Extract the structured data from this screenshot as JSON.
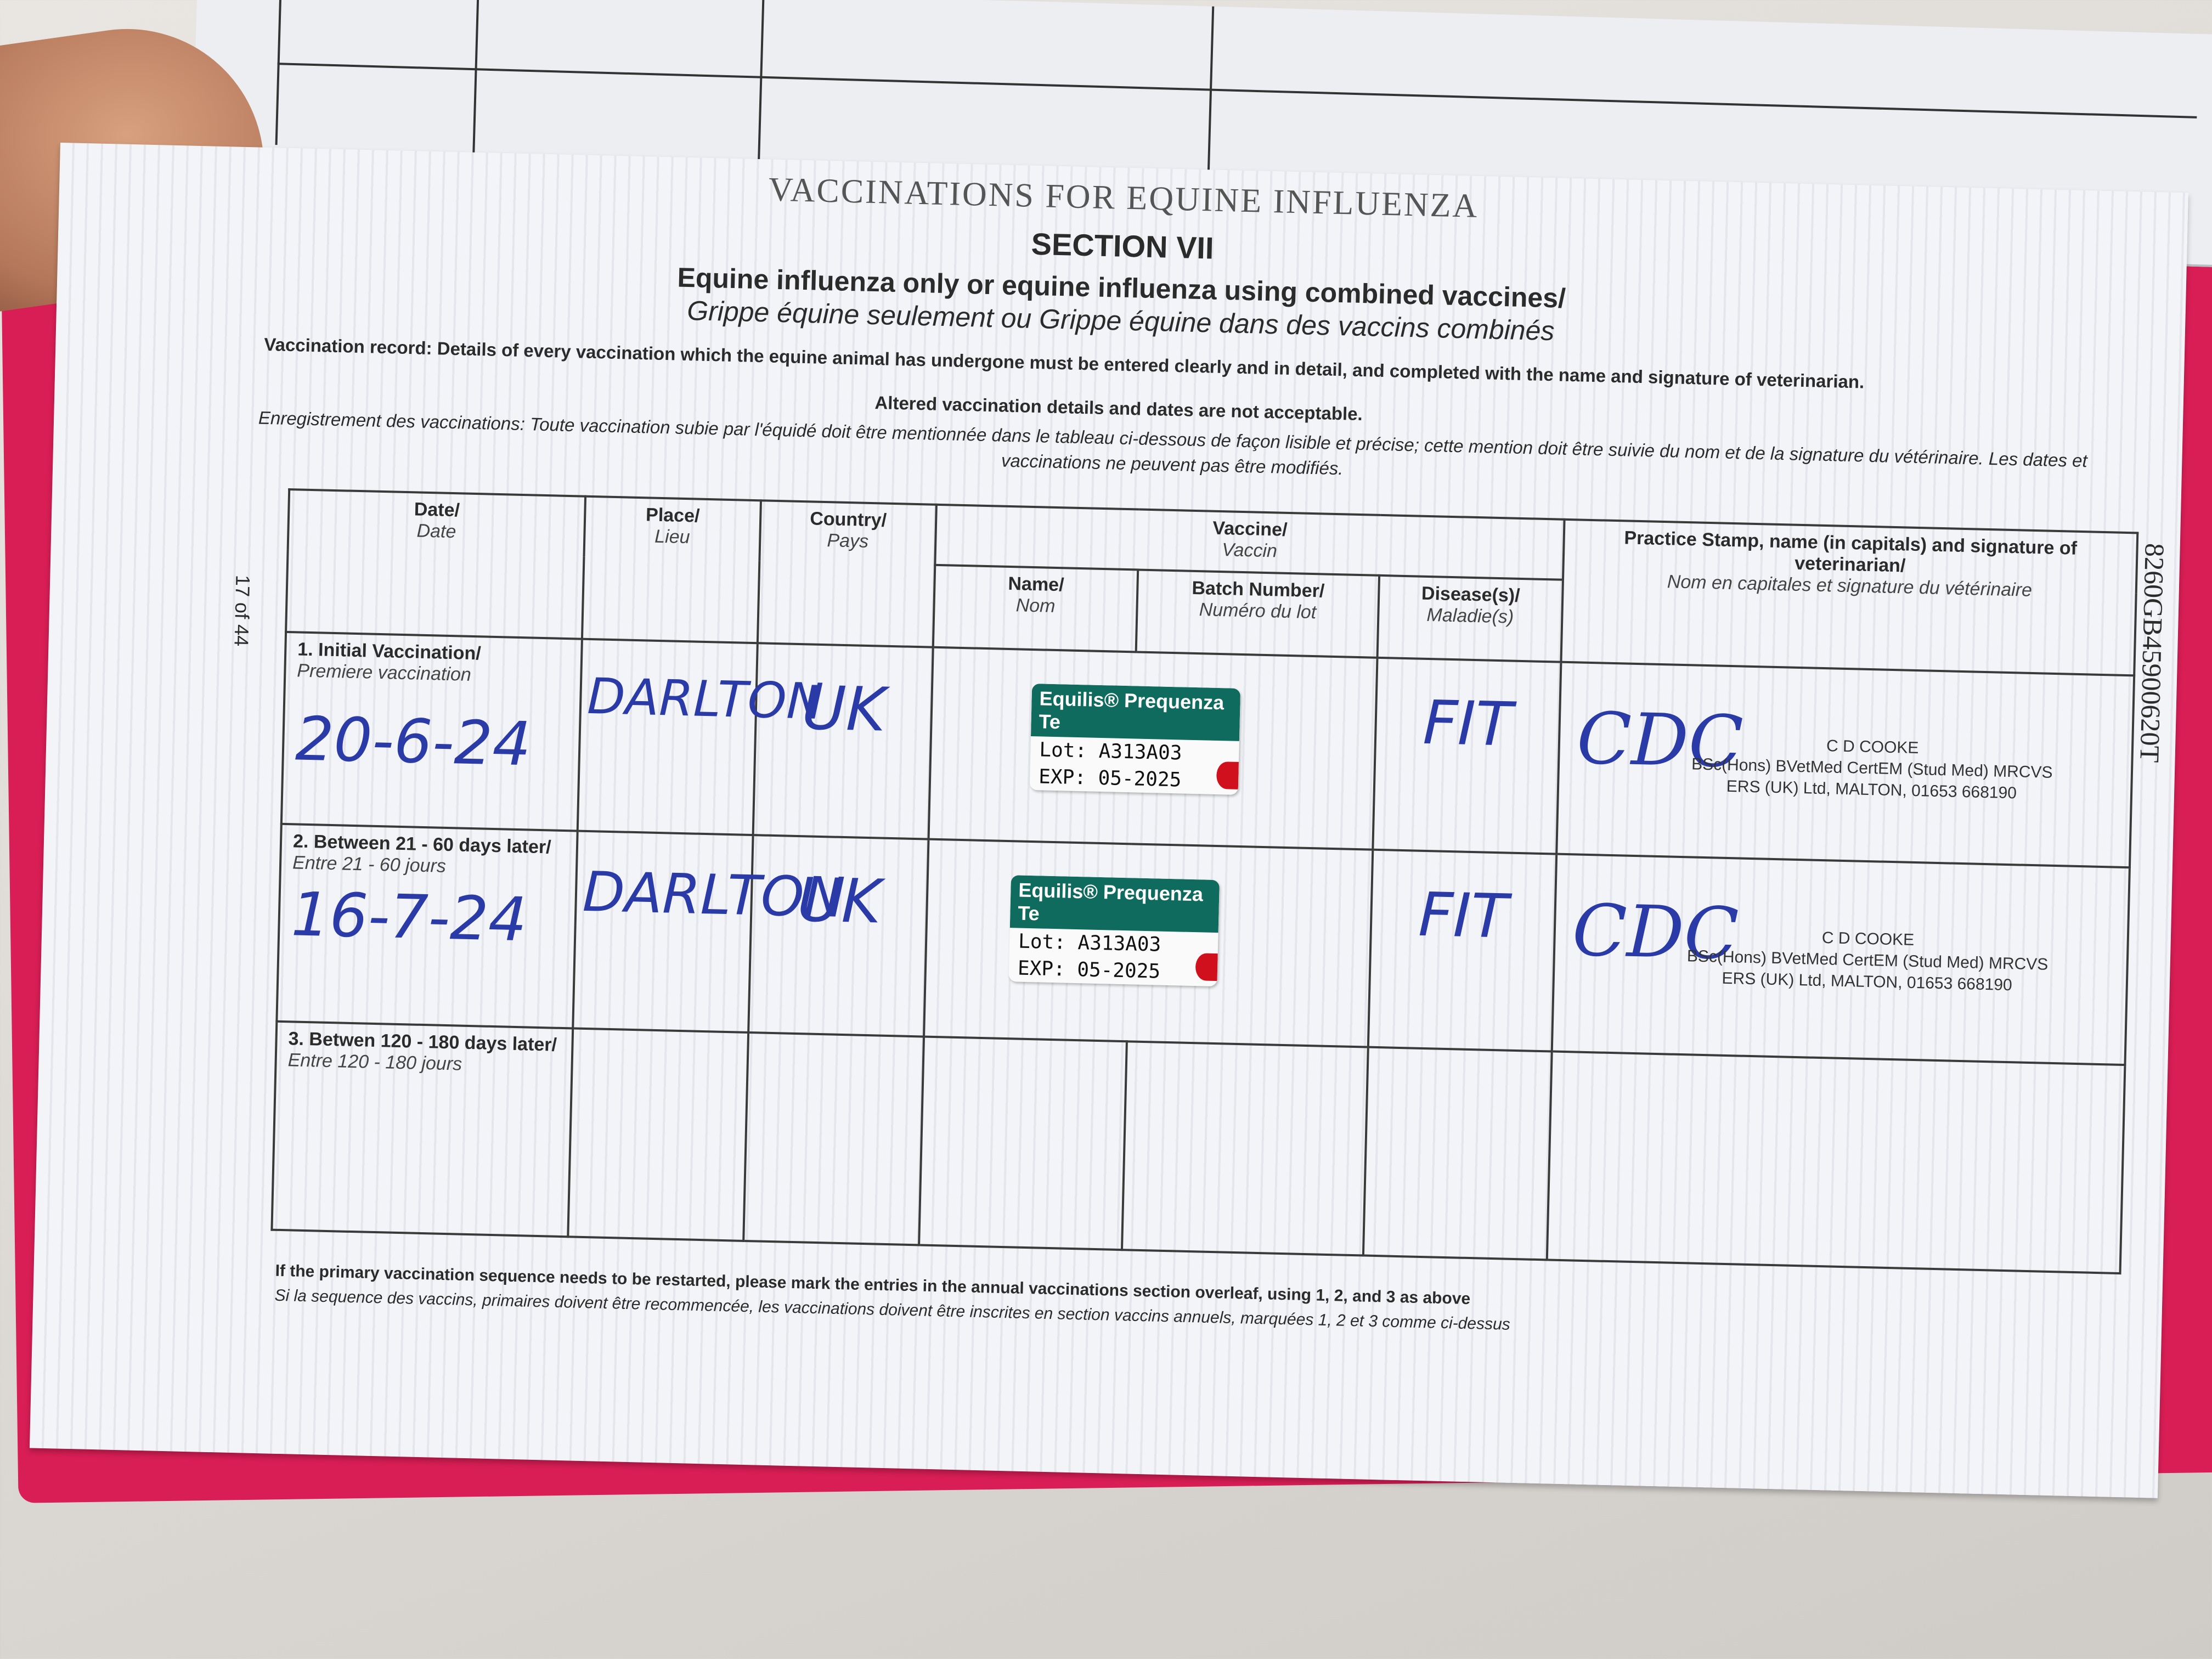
{
  "header": {
    "title": "VACCINATIONS FOR EQUINE INFLUENZA",
    "section": "SECTION VII",
    "heading_en": "Equine influenza only or equine influenza using combined vaccines/",
    "heading_fr": "Grippe équine seulement ou Grippe équine dans des vaccins combinés"
  },
  "intro": {
    "en": "Vaccination record: Details of every vaccination which the equine animal has undergone must be entered clearly and in detail, and completed with the name and signature of veterinarian.",
    "en_bold": "Altered vaccination details and dates are not acceptable.",
    "fr": "Enregistrement des vaccinations: Toute vaccination subie par l'équidé doit être mentionnée dans le tableau ci-dessous de façon lisible et précise; cette mention doit être suivie du nom et de la signature du vétérinaire. Les dates et vaccinations ne peuvent pas être modifiés."
  },
  "page_number": "17 of 44",
  "passport_number": "8260GB45900620T",
  "table": {
    "headers": {
      "date": "Date/",
      "date_fr": "Date",
      "place": "Place/",
      "place_fr": "Lieu",
      "country": "Country/",
      "country_fr": "Pays",
      "vaccine": "Vaccine/",
      "vaccine_fr": "Vaccin",
      "name": "Name/",
      "name_fr": "Nom",
      "batch": "Batch Number/",
      "batch_fr": "Numéro du lot",
      "disease": "Disease(s)/",
      "disease_fr": "Maladie(s)",
      "stamp": "Practice Stamp, name (in capitals) and signature of veterinarian/",
      "stamp_fr": "Nom en capitales et signature du vétérinaire"
    },
    "rows": [
      {
        "label": "1. Initial Vaccination/",
        "label_fr": "Premiere vaccination",
        "date": "20-6-24",
        "place": "DARLTON",
        "country": "UK",
        "vaccine": "Equilis® Prequenza Te",
        "lot_label": "Lot:",
        "lot": "A313A03",
        "exp_label": "EXP:",
        "exp": "05-2025",
        "disease": "FIT",
        "signature": "CDC",
        "vet_name": "C D COOKE",
        "vet_quals": "BSc(Hons) BVetMed CertEM (Stud Med) MRCVS",
        "vet_practice": "ERS (UK) Ltd, MALTON, 01653 668190"
      },
      {
        "label": "2. Between 21 - 60 days later/",
        "label_fr": "Entre 21 - 60 jours",
        "date": "16-7-24",
        "place": "DARLTON",
        "country": "UK",
        "vaccine": "Equilis® Prequenza Te",
        "lot_label": "Lot:",
        "lot": "A313A03",
        "exp_label": "EXP:",
        "exp": "05-2025",
        "disease": "FIT",
        "signature": "CDC",
        "vet_name": "C D COOKE",
        "vet_quals": "BSc(Hons) BVetMed CertEM (Stud Med) MRCVS",
        "vet_practice": "ERS (UK) Ltd, MALTON, 01653 668190"
      },
      {
        "label": "3. Betwen 120 - 180 days later/",
        "label_fr": "Entre 120 - 180 jours"
      }
    ]
  },
  "footnote": {
    "en": "If the primary vaccination sequence needs to be restarted, please mark the entries in the annual vaccinations section overleaf, using 1, 2, and 3 as above",
    "fr": "Si la sequence des vaccins, primaires doivent être recommencée, les vaccinations doivent être inscrites en section vaccins annuels, marquées 1, 2 et 3 comme ci-dessus"
  },
  "colors": {
    "cover": "#d81e55",
    "ink": "#2a3aa6",
    "label_green": "#0f6b5e"
  }
}
